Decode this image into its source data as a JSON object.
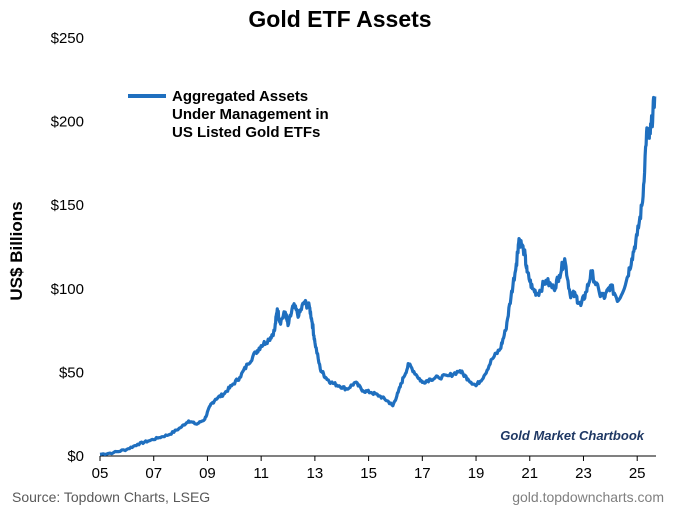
{
  "chart_data": {
    "type": "line",
    "title": "Gold ETF Assets",
    "ylabel": "US$ Billions",
    "xlabel": "",
    "ylim": [
      0,
      250
    ],
    "xlim": [
      2005,
      2025.7
    ],
    "y_ticks": [
      0,
      50,
      100,
      150,
      200,
      250
    ],
    "y_tick_labels": [
      "$0",
      "$50",
      "$100",
      "$150",
      "$200",
      "$250"
    ],
    "x_ticks": [
      2005,
      2007,
      2009,
      2011,
      2013,
      2015,
      2017,
      2019,
      2021,
      2023,
      2025
    ],
    "x_tick_labels": [
      "05",
      "07",
      "09",
      "11",
      "13",
      "15",
      "17",
      "19",
      "21",
      "23",
      "25"
    ],
    "grid": false,
    "legend_position": "top-left",
    "series": [
      {
        "name": "Aggregated Assets Under Management in US Listed Gold ETFs",
        "name_lines": [
          "Aggregated Assets",
          "Under Management in",
          "US Listed Gold ETFs"
        ],
        "color": "#1f6fbf",
        "x": [
          2005.0,
          2005.5,
          2006.0,
          2006.4,
          2006.8,
          2007.2,
          2007.6,
          2008.0,
          2008.3,
          2008.6,
          2008.9,
          2009.1,
          2009.3,
          2009.6,
          2009.9,
          2010.2,
          2010.5,
          2010.8,
          2011.0,
          2011.3,
          2011.5,
          2011.6,
          2011.7,
          2011.9,
          2012.0,
          2012.2,
          2012.4,
          2012.6,
          2012.8,
          2012.9,
          2013.0,
          2013.2,
          2013.4,
          2013.6,
          2013.9,
          2014.2,
          2014.5,
          2014.8,
          2015.1,
          2015.4,
          2015.7,
          2015.9,
          2016.1,
          2016.3,
          2016.5,
          2016.8,
          2017.0,
          2017.3,
          2017.6,
          2018.0,
          2018.4,
          2018.7,
          2019.0,
          2019.3,
          2019.6,
          2019.9,
          2020.1,
          2020.3,
          2020.5,
          2020.6,
          2020.8,
          2020.9,
          2021.1,
          2021.3,
          2021.6,
          2021.9,
          2022.1,
          2022.3,
          2022.5,
          2022.7,
          2022.9,
          2023.1,
          2023.3,
          2023.6,
          2023.8,
          2024.0,
          2024.3,
          2024.6,
          2024.8,
          2025.0,
          2025.2,
          2025.35,
          2025.45,
          2025.55,
          2025.65
        ],
        "values": [
          1,
          2,
          4,
          7,
          9,
          11,
          13,
          17,
          21,
          19,
          22,
          30,
          34,
          37,
          42,
          47,
          55,
          62,
          66,
          70,
          75,
          88,
          80,
          86,
          78,
          90,
          84,
          92,
          89,
          80,
          68,
          52,
          47,
          44,
          42,
          40,
          44,
          39,
          38,
          36,
          33,
          30,
          38,
          47,
          55,
          48,
          44,
          46,
          47,
          48,
          51,
          46,
          42,
          48,
          58,
          64,
          75,
          95,
          115,
          130,
          122,
          110,
          100,
          97,
          105,
          100,
          108,
          118,
          97,
          96,
          90,
          98,
          110,
          97,
          95,
          102,
          93,
          105,
          118,
          132,
          152,
          194,
          190,
          200,
          215
        ]
      }
    ],
    "annotations": [
      "Gold Market Chartbook"
    ]
  },
  "footer": {
    "source": "Source: Topdown Charts, LSEG",
    "website": "gold.topdowncharts.com"
  },
  "colors": {
    "series": "#1f6fbf",
    "watermark": "#1f3864",
    "footer_left": "#595959",
    "footer_right": "#7f7f7f"
  }
}
